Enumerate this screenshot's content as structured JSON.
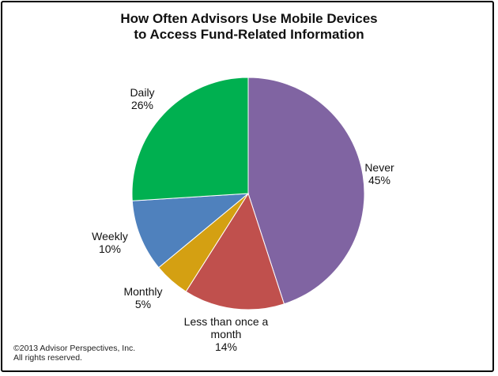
{
  "chart_data": {
    "type": "pie",
    "title_lines": [
      "How Often Advisors Use Mobile Devices",
      "to Access Fund-Related Information"
    ],
    "slices": [
      {
        "label_lines": [
          "Never",
          "45%"
        ],
        "value": 45,
        "color": "#8064a2"
      },
      {
        "label_lines": [
          "Less than once a",
          "month",
          "14%"
        ],
        "value": 14,
        "color": "#c0504d"
      },
      {
        "label_lines": [
          "Monthly",
          "5%"
        ],
        "value": 5,
        "color": "#d4a012"
      },
      {
        "label_lines": [
          "Weekly",
          "10%"
        ],
        "value": 10,
        "color": "#4f81bd"
      },
      {
        "label_lines": [
          "Daily",
          "26%"
        ],
        "value": 26,
        "color": "#00b050"
      }
    ],
    "start": "12 o'clock",
    "direction": "clockwise"
  },
  "footer": {
    "copyright_line1": "©2013 Advisor Perspectives, Inc.",
    "copyright_line2": "All rights reserved."
  }
}
